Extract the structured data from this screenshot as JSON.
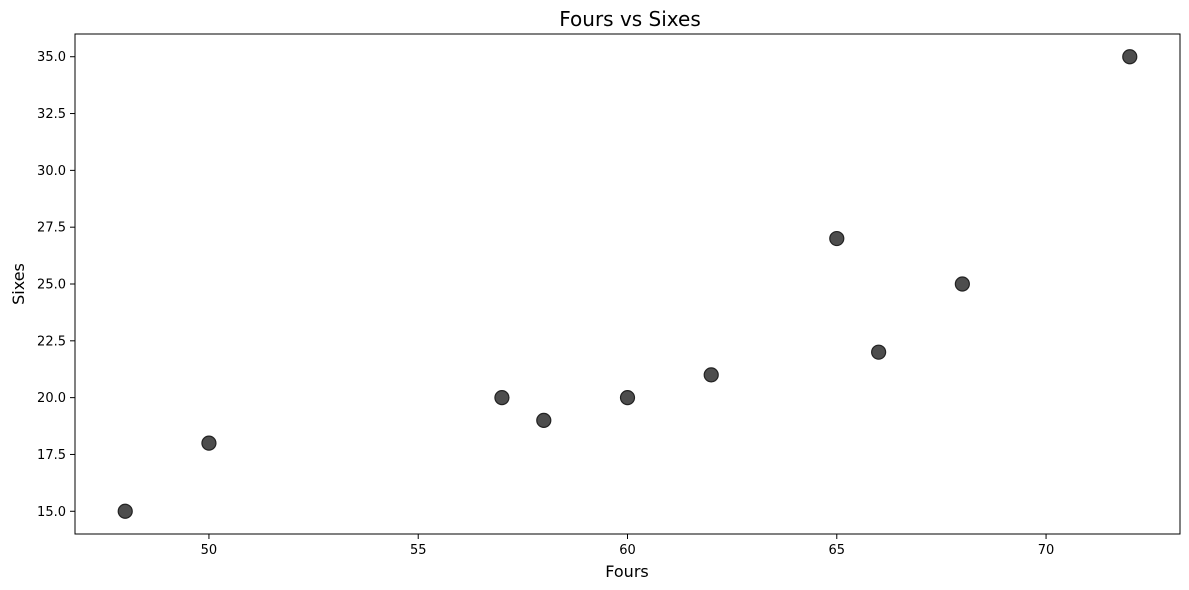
{
  "chart_data": {
    "type": "scatter",
    "title": "Fours vs Sixes",
    "xlabel": "Fours",
    "ylabel": "Sixes",
    "xlim": [
      46.8,
      73.2
    ],
    "ylim": [
      14.0,
      36.0
    ],
    "x_ticks": [
      50,
      55,
      60,
      65,
      70
    ],
    "y_ticks": [
      15.0,
      17.5,
      20.0,
      22.5,
      25.0,
      27.5,
      30.0,
      32.5,
      35.0
    ],
    "grid": false,
    "series": [
      {
        "points": [
          {
            "x": 48,
            "y": 15
          },
          {
            "x": 50,
            "y": 18
          },
          {
            "x": 57,
            "y": 20
          },
          {
            "x": 58,
            "y": 19
          },
          {
            "x": 60,
            "y": 20
          },
          {
            "x": 62,
            "y": 21
          },
          {
            "x": 65,
            "y": 27
          },
          {
            "x": 66,
            "y": 22
          },
          {
            "x": 68,
            "y": 25
          },
          {
            "x": 72,
            "y": 35
          }
        ],
        "color": "#4d4d4d",
        "edge_color": "#222222"
      }
    ]
  }
}
